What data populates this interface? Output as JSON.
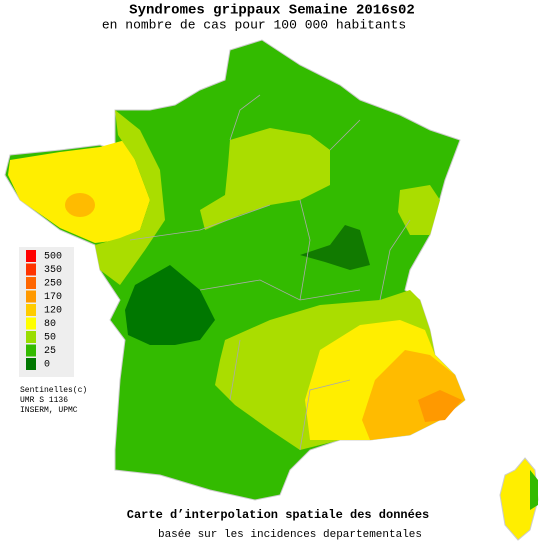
{
  "header": {
    "title": "Syndromes grippaux Semaine 2016s02",
    "subtitle": "en nombre de cas pour 100 000 habitants"
  },
  "legend": {
    "items": [
      {
        "label": "500",
        "color": "#ff0000"
      },
      {
        "label": "350",
        "color": "#ff3300"
      },
      {
        "label": "250",
        "color": "#ff6600"
      },
      {
        "label": "170",
        "color": "#ff9900"
      },
      {
        "label": "120",
        "color": "#ffcc00"
      },
      {
        "label": "80",
        "color": "#ffff00"
      },
      {
        "label": "50",
        "color": "#99dd00"
      },
      {
        "label": "25",
        "color": "#33bb00"
      },
      {
        "label": "0",
        "color": "#007700"
      }
    ],
    "credits": [
      "Sentinelles(c)",
      "UMR S 1136",
      "INSERM, UPMC"
    ]
  },
  "footer": {
    "caption": "Carte d’interpolation spatiale des données",
    "note": "basée sur les incidences departementales"
  }
}
